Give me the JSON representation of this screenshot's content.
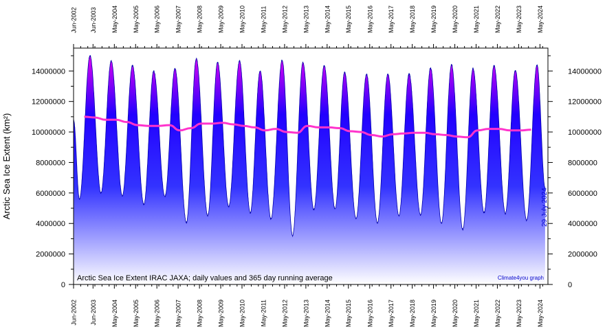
{
  "chart_data": {
    "type": "area",
    "ylabel": "Arctic Sea Ice Extent (km²)",
    "annotation": "Arctic Sea Ice Extent IRAC JAXA; daily values and 365 day running average",
    "credit": "Climate4you graph",
    "date_label": "29 July 2024",
    "ylim": [
      0,
      15500000
    ],
    "y_ticks": [
      0,
      2000000,
      4000000,
      6000000,
      8000000,
      10000000,
      12000000,
      14000000
    ],
    "y_tick_labels": [
      "0",
      "2000000",
      "4000000",
      "6000000",
      "8000000",
      "10000000",
      "12000000",
      "14000000"
    ],
    "xlim": [
      "2002-06-01",
      "2024-09-15"
    ],
    "x_ticks": [
      "2002-06-01",
      "2003-05-01",
      "2004-05-01",
      "2005-05-01",
      "2006-05-01",
      "2007-05-01",
      "2008-05-01",
      "2009-05-01",
      "2010-05-01",
      "2011-05-01",
      "2012-05-01",
      "2013-05-01",
      "2014-05-01",
      "2015-05-01",
      "2016-05-01",
      "2017-05-01",
      "2018-05-01",
      "2019-05-01",
      "2020-05-01",
      "2021-05-01",
      "2022-05-01",
      "2023-05-01",
      "2024-05-01"
    ],
    "x_tick_labels": [
      "Jun-2002",
      "Jun-2003",
      "May-2004",
      "May-2005",
      "May-2006",
      "May-2007",
      "May-2008",
      "May-2009",
      "May-2010",
      "May-2011",
      "May-2012",
      "May-2013",
      "May-2014",
      "May-2015",
      "May-2016",
      "May-2017",
      "May-2018",
      "May-2019",
      "May-2020",
      "May-2021",
      "May-2022",
      "May-2023",
      "May-2024"
    ],
    "grid": false,
    "colors": {
      "daily_top": "#ee00ee",
      "daily_mid": "#0000ff",
      "daily_bottom": "#ffffff",
      "daily_outline": "#0000aa",
      "running_mean": "#ff33cc",
      "annotation_text": "#000000",
      "credit_text": "#0000cc"
    },
    "series": [
      {
        "kind": "daily",
        "start_date": "2002-06-01",
        "start_value": 10800000,
        "end_date": "2024-07-29",
        "end_value": 6300000,
        "maxima": [
          [
            "2003-03-10",
            15000000
          ],
          [
            "2004-03-08",
            14650000
          ],
          [
            "2005-03-08",
            14350000
          ],
          [
            "2006-03-08",
            14000000
          ],
          [
            "2007-03-08",
            14150000
          ],
          [
            "2008-03-08",
            14800000
          ],
          [
            "2009-03-08",
            14550000
          ],
          [
            "2010-03-20",
            14650000
          ],
          [
            "2011-03-08",
            14000000
          ],
          [
            "2012-03-20",
            14700000
          ],
          [
            "2013-03-12",
            14550000
          ],
          [
            "2014-03-12",
            14350000
          ],
          [
            "2015-02-25",
            13900000
          ],
          [
            "2016-03-08",
            13800000
          ],
          [
            "2017-03-08",
            13800000
          ],
          [
            "2018-03-08",
            13800000
          ],
          [
            "2019-03-12",
            14200000
          ],
          [
            "2020-03-05",
            14400000
          ],
          [
            "2021-03-08",
            14150000
          ],
          [
            "2022-03-05",
            14350000
          ],
          [
            "2023-03-05",
            14050000
          ],
          [
            "2024-03-12",
            14400000
          ]
        ],
        "minima": [
          [
            "2002-09-10",
            5600000
          ],
          [
            "2003-09-15",
            6000000
          ],
          [
            "2004-09-15",
            5800000
          ],
          [
            "2005-09-20",
            5250000
          ],
          [
            "2006-09-15",
            5750000
          ],
          [
            "2007-09-20",
            4050000
          ],
          [
            "2008-09-20",
            4500000
          ],
          [
            "2009-09-15",
            5100000
          ],
          [
            "2010-09-20",
            4700000
          ],
          [
            "2011-09-10",
            4300000
          ],
          [
            "2012-09-15",
            3200000
          ],
          [
            "2013-09-15",
            4900000
          ],
          [
            "2014-09-15",
            4950000
          ],
          [
            "2015-09-10",
            4300000
          ],
          [
            "2016-09-10",
            4050000
          ],
          [
            "2017-09-15",
            4500000
          ],
          [
            "2018-09-20",
            4550000
          ],
          [
            "2019-09-15",
            4000000
          ],
          [
            "2020-09-15",
            3600000
          ],
          [
            "2021-09-15",
            4700000
          ],
          [
            "2022-09-15",
            4650000
          ],
          [
            "2023-09-15",
            4200000
          ]
        ]
      },
      {
        "kind": "running_mean",
        "points": [
          [
            "2002-12-01",
            11000000
          ],
          [
            "2003-06-01",
            10950000
          ],
          [
            "2003-12-01",
            10800000
          ],
          [
            "2004-06-01",
            10800000
          ],
          [
            "2004-12-01",
            10650000
          ],
          [
            "2005-06-01",
            10450000
          ],
          [
            "2005-12-01",
            10400000
          ],
          [
            "2006-06-01",
            10400000
          ],
          [
            "2006-12-01",
            10450000
          ],
          [
            "2007-06-01",
            10100000
          ],
          [
            "2007-12-01",
            10250000
          ],
          [
            "2008-06-01",
            10550000
          ],
          [
            "2008-12-01",
            10550000
          ],
          [
            "2009-06-01",
            10600000
          ],
          [
            "2009-12-01",
            10500000
          ],
          [
            "2010-06-01",
            10400000
          ],
          [
            "2010-12-01",
            10300000
          ],
          [
            "2011-06-01",
            10100000
          ],
          [
            "2011-12-01",
            10200000
          ],
          [
            "2012-06-01",
            10000000
          ],
          [
            "2012-12-01",
            9950000
          ],
          [
            "2013-06-01",
            10400000
          ],
          [
            "2013-12-01",
            10300000
          ],
          [
            "2014-06-01",
            10300000
          ],
          [
            "2014-12-01",
            10250000
          ],
          [
            "2015-06-01",
            10050000
          ],
          [
            "2015-12-01",
            10000000
          ],
          [
            "2016-06-01",
            9800000
          ],
          [
            "2016-12-01",
            9700000
          ],
          [
            "2017-06-01",
            9850000
          ],
          [
            "2017-12-01",
            9900000
          ],
          [
            "2018-06-01",
            9950000
          ],
          [
            "2018-12-01",
            9950000
          ],
          [
            "2019-06-01",
            9850000
          ],
          [
            "2019-12-01",
            9800000
          ],
          [
            "2020-06-01",
            9700000
          ],
          [
            "2020-12-01",
            9650000
          ],
          [
            "2021-06-01",
            10100000
          ],
          [
            "2021-12-01",
            10200000
          ],
          [
            "2022-06-01",
            10200000
          ],
          [
            "2022-12-01",
            10100000
          ],
          [
            "2023-06-01",
            10100000
          ],
          [
            "2023-12-01",
            10150000
          ]
        ]
      }
    ]
  }
}
